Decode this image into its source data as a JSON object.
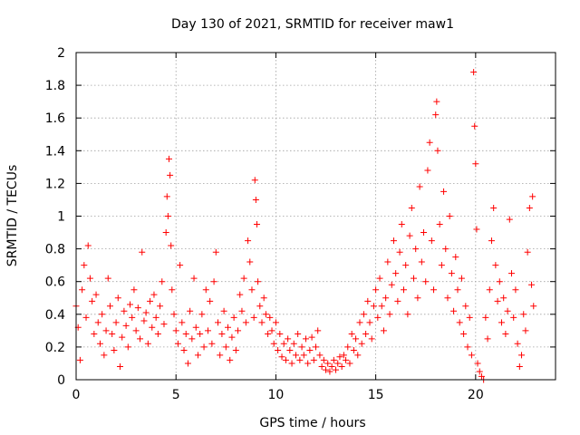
{
  "chart_data": {
    "type": "scatter",
    "title": "Day 130 of 2021, SRMTID for receiver maw1",
    "xlabel": "GPS time / hours",
    "ylabel": "SRMTID / TECUs",
    "xlim": [
      0,
      24
    ],
    "ylim": [
      0,
      2
    ],
    "xticks": [
      0,
      5,
      10,
      15,
      20
    ],
    "xtick_labels": [
      "0",
      "5",
      "10",
      "15",
      "20"
    ],
    "yticks": [
      0,
      0.2,
      0.4,
      0.6,
      0.8,
      1.0,
      1.2,
      1.4,
      1.6,
      1.8,
      2.0
    ],
    "ytick_labels": [
      "0",
      "0.2",
      "0.4",
      "0.6",
      "0.8",
      "1",
      "1.2",
      "1.4",
      "1.6",
      "1.8",
      "2"
    ],
    "grid": true,
    "marker": "+",
    "color": "#ff0000",
    "series": [
      {
        "name": "SRMTID",
        "points": [
          [
            0.0,
            0.45
          ],
          [
            0.1,
            0.32
          ],
          [
            0.2,
            0.12
          ],
          [
            0.3,
            0.55
          ],
          [
            0.4,
            0.7
          ],
          [
            0.5,
            0.38
          ],
          [
            0.6,
            0.82
          ],
          [
            0.7,
            0.62
          ],
          [
            0.8,
            0.48
          ],
          [
            0.9,
            0.28
          ],
          [
            1.0,
            0.52
          ],
          [
            1.1,
            0.35
          ],
          [
            1.2,
            0.22
          ],
          [
            1.3,
            0.4
          ],
          [
            1.4,
            0.15
          ],
          [
            1.5,
            0.3
          ],
          [
            1.6,
            0.62
          ],
          [
            1.7,
            0.45
          ],
          [
            1.8,
            0.28
          ],
          [
            1.9,
            0.18
          ],
          [
            2.0,
            0.35
          ],
          [
            2.1,
            0.5
          ],
          [
            2.2,
            0.08
          ],
          [
            2.3,
            0.26
          ],
          [
            2.4,
            0.42
          ],
          [
            2.5,
            0.33
          ],
          [
            2.6,
            0.2
          ],
          [
            2.7,
            0.46
          ],
          [
            2.8,
            0.38
          ],
          [
            2.9,
            0.55
          ],
          [
            3.0,
            0.3
          ],
          [
            3.1,
            0.44
          ],
          [
            3.2,
            0.25
          ],
          [
            3.3,
            0.78
          ],
          [
            3.4,
            0.36
          ],
          [
            3.5,
            0.41
          ],
          [
            3.6,
            0.22
          ],
          [
            3.7,
            0.48
          ],
          [
            3.8,
            0.32
          ],
          [
            3.9,
            0.52
          ],
          [
            4.0,
            0.38
          ],
          [
            4.1,
            0.28
          ],
          [
            4.2,
            0.45
          ],
          [
            4.3,
            0.6
          ],
          [
            4.4,
            0.34
          ],
          [
            4.5,
            0.9
          ],
          [
            4.55,
            1.12
          ],
          [
            4.6,
            1.0
          ],
          [
            4.65,
            1.35
          ],
          [
            4.7,
            1.25
          ],
          [
            4.75,
            0.82
          ],
          [
            4.8,
            0.55
          ],
          [
            4.9,
            0.4
          ],
          [
            5.0,
            0.3
          ],
          [
            5.1,
            0.22
          ],
          [
            5.2,
            0.7
          ],
          [
            5.3,
            0.35
          ],
          [
            5.4,
            0.18
          ],
          [
            5.5,
            0.28
          ],
          [
            5.6,
            0.1
          ],
          [
            5.7,
            0.42
          ],
          [
            5.8,
            0.25
          ],
          [
            5.9,
            0.62
          ],
          [
            6.0,
            0.32
          ],
          [
            6.1,
            0.15
          ],
          [
            6.2,
            0.28
          ],
          [
            6.3,
            0.4
          ],
          [
            6.4,
            0.2
          ],
          [
            6.5,
            0.55
          ],
          [
            6.6,
            0.3
          ],
          [
            6.7,
            0.48
          ],
          [
            6.8,
            0.22
          ],
          [
            6.9,
            0.6
          ],
          [
            7.0,
            0.78
          ],
          [
            7.1,
            0.35
          ],
          [
            7.2,
            0.15
          ],
          [
            7.3,
            0.28
          ],
          [
            7.4,
            0.42
          ],
          [
            7.5,
            0.2
          ],
          [
            7.6,
            0.32
          ],
          [
            7.7,
            0.12
          ],
          [
            7.8,
            0.26
          ],
          [
            7.9,
            0.38
          ],
          [
            8.0,
            0.18
          ],
          [
            8.1,
            0.3
          ],
          [
            8.2,
            0.52
          ],
          [
            8.3,
            0.42
          ],
          [
            8.4,
            0.62
          ],
          [
            8.5,
            0.35
          ],
          [
            8.6,
            0.85
          ],
          [
            8.7,
            0.72
          ],
          [
            8.8,
            0.55
          ],
          [
            8.9,
            0.38
          ],
          [
            8.95,
            1.22
          ],
          [
            9.0,
            1.1
          ],
          [
            9.05,
            0.95
          ],
          [
            9.1,
            0.6
          ],
          [
            9.2,
            0.45
          ],
          [
            9.3,
            0.35
          ],
          [
            9.4,
            0.5
          ],
          [
            9.5,
            0.4
          ],
          [
            9.6,
            0.28
          ],
          [
            9.7,
            0.38
          ],
          [
            9.8,
            0.3
          ],
          [
            9.9,
            0.22
          ],
          [
            10.0,
            0.35
          ],
          [
            10.1,
            0.18
          ],
          [
            10.2,
            0.28
          ],
          [
            10.3,
            0.14
          ],
          [
            10.4,
            0.22
          ],
          [
            10.5,
            0.12
          ],
          [
            10.6,
            0.25
          ],
          [
            10.7,
            0.18
          ],
          [
            10.8,
            0.1
          ],
          [
            10.9,
            0.22
          ],
          [
            11.0,
            0.15
          ],
          [
            11.1,
            0.28
          ],
          [
            11.2,
            0.12
          ],
          [
            11.3,
            0.2
          ],
          [
            11.4,
            0.15
          ],
          [
            11.5,
            0.25
          ],
          [
            11.6,
            0.1
          ],
          [
            11.7,
            0.18
          ],
          [
            11.8,
            0.26
          ],
          [
            11.9,
            0.12
          ],
          [
            12.0,
            0.2
          ],
          [
            12.1,
            0.3
          ],
          [
            12.2,
            0.15
          ],
          [
            12.3,
            0.08
          ],
          [
            12.4,
            0.12
          ],
          [
            12.5,
            0.06
          ],
          [
            12.6,
            0.1
          ],
          [
            12.7,
            0.05
          ],
          [
            12.8,
            0.08
          ],
          [
            12.9,
            0.12
          ],
          [
            13.0,
            0.06
          ],
          [
            13.1,
            0.1
          ],
          [
            13.2,
            0.14
          ],
          [
            13.3,
            0.08
          ],
          [
            13.4,
            0.15
          ],
          [
            13.5,
            0.12
          ],
          [
            13.6,
            0.2
          ],
          [
            13.7,
            0.1
          ],
          [
            13.8,
            0.28
          ],
          [
            13.9,
            0.18
          ],
          [
            14.0,
            0.25
          ],
          [
            14.1,
            0.15
          ],
          [
            14.2,
            0.35
          ],
          [
            14.3,
            0.22
          ],
          [
            14.4,
            0.4
          ],
          [
            14.5,
            0.28
          ],
          [
            14.6,
            0.48
          ],
          [
            14.7,
            0.35
          ],
          [
            14.8,
            0.25
          ],
          [
            14.9,
            0.45
          ],
          [
            15.0,
            0.55
          ],
          [
            15.1,
            0.38
          ],
          [
            15.2,
            0.62
          ],
          [
            15.3,
            0.45
          ],
          [
            15.4,
            0.3
          ],
          [
            15.5,
            0.5
          ],
          [
            15.6,
            0.72
          ],
          [
            15.7,
            0.4
          ],
          [
            15.8,
            0.58
          ],
          [
            15.9,
            0.85
          ],
          [
            16.0,
            0.65
          ],
          [
            16.1,
            0.48
          ],
          [
            16.2,
            0.78
          ],
          [
            16.3,
            0.95
          ],
          [
            16.4,
            0.55
          ],
          [
            16.5,
            0.7
          ],
          [
            16.6,
            0.4
          ],
          [
            16.7,
            0.88
          ],
          [
            16.8,
            1.05
          ],
          [
            16.9,
            0.62
          ],
          [
            17.0,
            0.8
          ],
          [
            17.1,
            0.5
          ],
          [
            17.2,
            1.18
          ],
          [
            17.3,
            0.72
          ],
          [
            17.4,
            0.9
          ],
          [
            17.5,
            0.6
          ],
          [
            17.6,
            1.28
          ],
          [
            17.7,
            1.45
          ],
          [
            17.8,
            0.85
          ],
          [
            17.9,
            0.55
          ],
          [
            18.0,
            1.62
          ],
          [
            18.05,
            1.7
          ],
          [
            18.1,
            1.4
          ],
          [
            18.2,
            0.95
          ],
          [
            18.3,
            0.7
          ],
          [
            18.4,
            1.15
          ],
          [
            18.5,
            0.8
          ],
          [
            18.6,
            0.5
          ],
          [
            18.7,
            1.0
          ],
          [
            18.8,
            0.65
          ],
          [
            18.9,
            0.42
          ],
          [
            19.0,
            0.75
          ],
          [
            19.1,
            0.55
          ],
          [
            19.2,
            0.35
          ],
          [
            19.3,
            0.62
          ],
          [
            19.4,
            0.28
          ],
          [
            19.5,
            0.45
          ],
          [
            19.6,
            0.2
          ],
          [
            19.7,
            0.38
          ],
          [
            19.8,
            0.15
          ],
          [
            19.9,
            1.88
          ],
          [
            19.95,
            1.55
          ],
          [
            20.0,
            1.32
          ],
          [
            20.05,
            0.92
          ],
          [
            20.1,
            0.1
          ],
          [
            20.2,
            0.05
          ],
          [
            20.3,
            0.02
          ],
          [
            20.4,
            0.0
          ],
          [
            20.5,
            0.38
          ],
          [
            20.6,
            0.25
          ],
          [
            20.7,
            0.55
          ],
          [
            20.8,
            0.85
          ],
          [
            20.9,
            1.05
          ],
          [
            21.0,
            0.7
          ],
          [
            21.1,
            0.48
          ],
          [
            21.2,
            0.6
          ],
          [
            21.3,
            0.35
          ],
          [
            21.4,
            0.5
          ],
          [
            21.5,
            0.28
          ],
          [
            21.6,
            0.42
          ],
          [
            21.7,
            0.98
          ],
          [
            21.8,
            0.65
          ],
          [
            21.9,
            0.38
          ],
          [
            22.0,
            0.55
          ],
          [
            22.1,
            0.22
          ],
          [
            22.2,
            0.08
          ],
          [
            22.3,
            0.15
          ],
          [
            22.4,
            0.4
          ],
          [
            22.5,
            0.3
          ],
          [
            22.6,
            0.78
          ],
          [
            22.7,
            1.05
          ],
          [
            22.8,
            0.58
          ],
          [
            22.85,
            1.12
          ],
          [
            22.9,
            0.45
          ]
        ]
      }
    ]
  }
}
